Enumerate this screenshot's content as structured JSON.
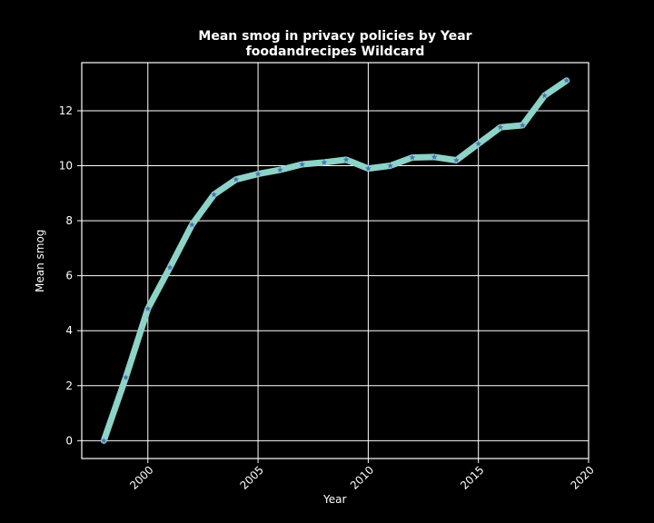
{
  "chart_data": {
    "type": "line",
    "title": "Mean smog in privacy policies by Year",
    "subtitle": "foodandrecipes Wildcard",
    "xlabel": "Year",
    "ylabel": "Mean smog",
    "x_ticks": [
      2000,
      2005,
      2010,
      2015,
      2020
    ],
    "y_ticks": [
      0,
      2,
      4,
      6,
      8,
      10,
      12
    ],
    "xlim": [
      1997,
      2020
    ],
    "ylim": [
      -0.65,
      13.75
    ],
    "grid": true,
    "legend": "none",
    "series": [
      {
        "x": [
          1998,
          1999,
          2000,
          2001,
          2002,
          2003,
          2004,
          2005,
          2006,
          2007,
          2008,
          2009,
          2010,
          2011,
          2012,
          2013,
          2014,
          2015,
          2016,
          2017,
          2018,
          2019
        ],
        "values": [
          0.0,
          2.3,
          4.8,
          6.3,
          7.85,
          8.95,
          9.5,
          9.7,
          9.85,
          10.05,
          10.12,
          10.22,
          9.9,
          10.0,
          10.3,
          10.32,
          10.2,
          10.8,
          11.4,
          11.47,
          12.55,
          13.1
        ],
        "line_color": "#8dd3c7",
        "marker_color": "#4a6fb5",
        "marker": "star"
      }
    ]
  }
}
